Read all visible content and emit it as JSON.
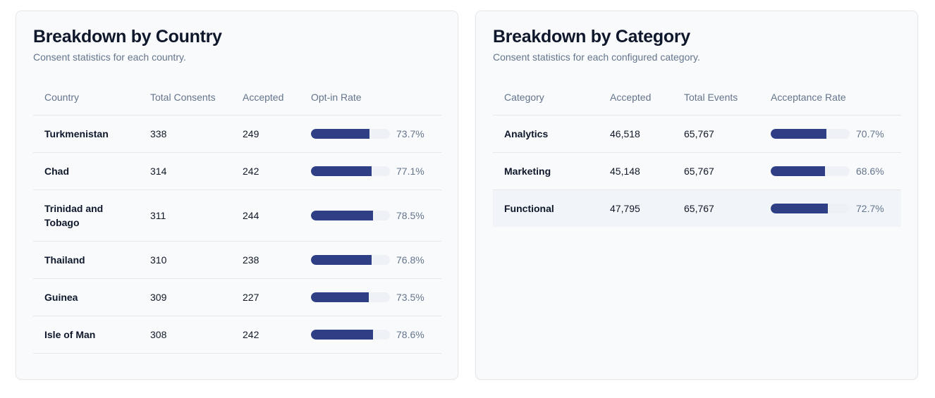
{
  "country": {
    "title": "Breakdown by Country",
    "subtitle": "Consent statistics for each country.",
    "headers": [
      "Country",
      "Total Consents",
      "Accepted",
      "Opt-in Rate"
    ],
    "rows": [
      {
        "name": "Turkmenistan",
        "total": "338",
        "accepted": "249",
        "rate_label": "73.7%",
        "rate": 0.737
      },
      {
        "name": "Chad",
        "total": "314",
        "accepted": "242",
        "rate_label": "77.1%",
        "rate": 0.771
      },
      {
        "name": "Trinidad and Tobago",
        "total": "311",
        "accepted": "244",
        "rate_label": "78.5%",
        "rate": 0.785
      },
      {
        "name": "Thailand",
        "total": "310",
        "accepted": "238",
        "rate_label": "76.8%",
        "rate": 0.768
      },
      {
        "name": "Guinea",
        "total": "309",
        "accepted": "227",
        "rate_label": "73.5%",
        "rate": 0.735
      },
      {
        "name": "Isle of Man",
        "total": "308",
        "accepted": "242",
        "rate_label": "78.6%",
        "rate": 0.786
      }
    ]
  },
  "category": {
    "title": "Breakdown by Category",
    "subtitle": "Consent statistics for each configured category.",
    "headers": [
      "Category",
      "Accepted",
      "Total Events",
      "Acceptance Rate"
    ],
    "rows": [
      {
        "name": "Analytics",
        "accepted": "46,518",
        "total": "65,767",
        "rate_label": "70.7%",
        "rate": 0.707
      },
      {
        "name": "Marketing",
        "accepted": "45,148",
        "total": "65,767",
        "rate_label": "68.6%",
        "rate": 0.686
      },
      {
        "name": "Functional",
        "accepted": "47,795",
        "total": "65,767",
        "rate_label": "72.7%",
        "rate": 0.727
      }
    ]
  },
  "colors": {
    "bar_fill": "#2f3f86",
    "bar_track": "#eef1f6"
  }
}
